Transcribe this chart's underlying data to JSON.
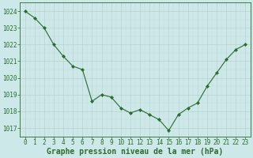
{
  "x": [
    0,
    1,
    2,
    3,
    4,
    5,
    6,
    7,
    8,
    9,
    10,
    11,
    12,
    13,
    14,
    15,
    16,
    17,
    18,
    19,
    20,
    21,
    22,
    23
  ],
  "y": [
    1024.0,
    1023.6,
    1023.0,
    1022.0,
    1021.3,
    1020.7,
    1020.5,
    1018.6,
    1019.0,
    1018.85,
    1018.2,
    1017.9,
    1018.1,
    1017.8,
    1017.5,
    1016.85,
    1017.8,
    1018.2,
    1018.5,
    1019.5,
    1020.3,
    1021.1,
    1021.7,
    1022.0
  ],
  "line_color": "#2d6b2d",
  "marker": "D",
  "marker_size": 2.2,
  "bg_color": "#cce8e8",
  "grid_major_color": "#b0c8c8",
  "grid_minor_color": "#c0d8d8",
  "xlabel": "Graphe pression niveau de la mer (hPa)",
  "xlabel_fontsize": 7,
  "xlabel_fontweight": "bold",
  "ytick_labels": [
    1017,
    1018,
    1019,
    1020,
    1021,
    1022,
    1023,
    1024
  ],
  "ylim": [
    1016.5,
    1024.5
  ],
  "xlim": [
    -0.5,
    23.5
  ],
  "xtick_labels": [
    "0",
    "1",
    "2",
    "3",
    "4",
    "5",
    "6",
    "7",
    "8",
    "9",
    "10",
    "11",
    "12",
    "13",
    "14",
    "15",
    "16",
    "17",
    "18",
    "19",
    "20",
    "21",
    "22",
    "23"
  ],
  "tick_fontsize": 5.5,
  "ytick_fontsize": 5.5
}
